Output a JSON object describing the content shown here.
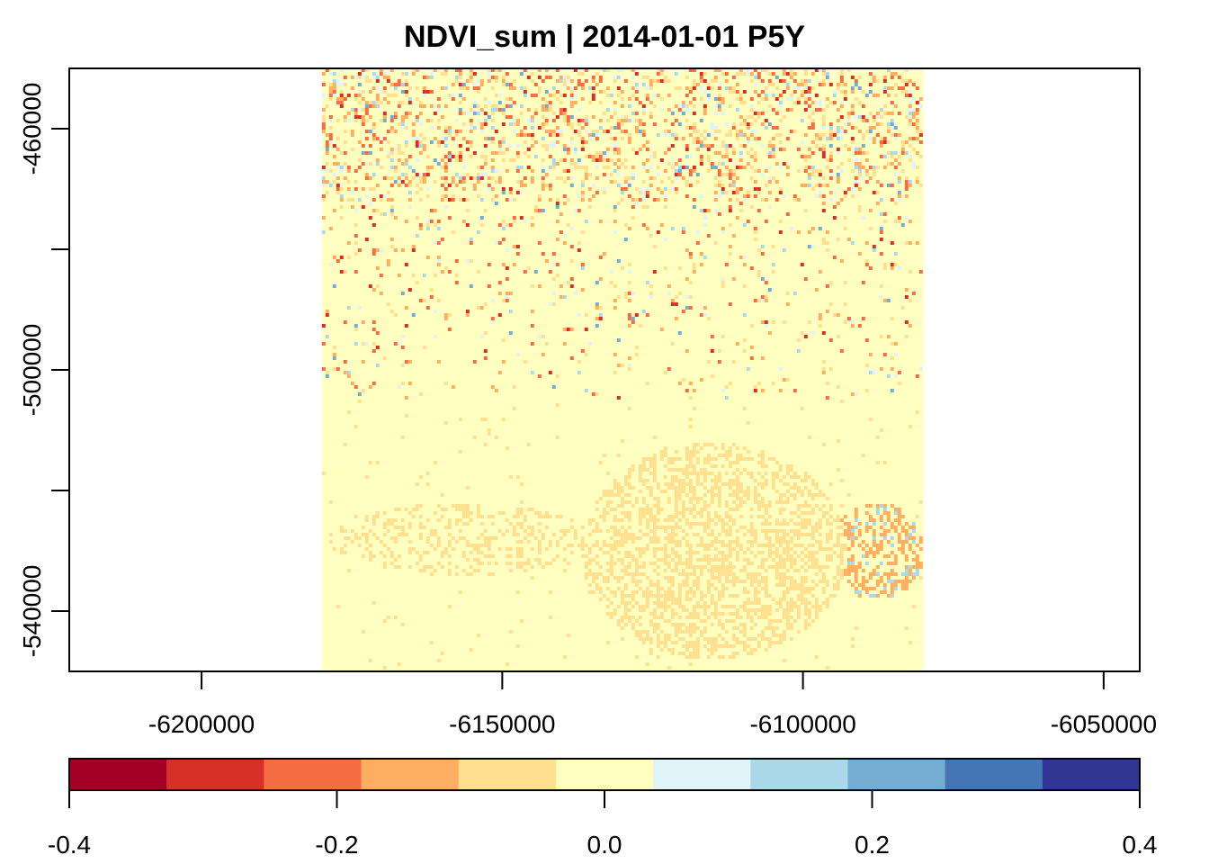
{
  "chart_data": {
    "type": "heatmap",
    "title": "NDVI_sum | 2014-01-01 P5Y",
    "xlabel": "",
    "ylabel": "",
    "x_range": [
      -6222000,
      -6044000
    ],
    "y_range": [
      -550000,
      -450000
    ],
    "raster_extent": {
      "xmin": -6180000,
      "xmax": -6080000,
      "ymin": -550000,
      "ymax": -450000
    },
    "x_ticks": [
      {
        "value": -6200000,
        "label": "-6200000"
      },
      {
        "value": -6150000,
        "label": "-6150000"
      },
      {
        "value": -6100000,
        "label": "-6100000"
      },
      {
        "value": -6050000,
        "label": "-6050000"
      }
    ],
    "y_ticks": [
      {
        "value": -460000,
        "label": "-460000"
      },
      {
        "value": -480000,
        "label": ""
      },
      {
        "value": -500000,
        "label": "-500000"
      },
      {
        "value": -520000,
        "label": ""
      },
      {
        "value": -540000,
        "label": "-540000"
      }
    ],
    "legend": {
      "placement": "bottom",
      "min": -0.4,
      "max": 0.4,
      "colors": [
        "#a50026",
        "#d73027",
        "#f46d43",
        "#fdae61",
        "#fee090",
        "#ffffbf",
        "#e0f3f8",
        "#abd9e9",
        "#74add1",
        "#4575b4",
        "#313695"
      ],
      "ticks": [
        {
          "value": -0.4,
          "label": "-0.4"
        },
        {
          "value": -0.2,
          "label": "-0.2"
        },
        {
          "value": 0.0,
          "label": "0.0"
        },
        {
          "value": 0.2,
          "label": "0.2"
        },
        {
          "value": 0.4,
          "label": "0.4"
        }
      ]
    },
    "background_value_color": "#ffffbf",
    "regions": [
      {
        "desc": "scattered pixels north band",
        "dominant": [
          "#fdae61",
          "#d73027",
          "#abd9e9",
          "#4575b4"
        ]
      },
      {
        "desc": "southern orange patches",
        "dominant": [
          "#fee090",
          "#fdae61"
        ]
      }
    ]
  }
}
